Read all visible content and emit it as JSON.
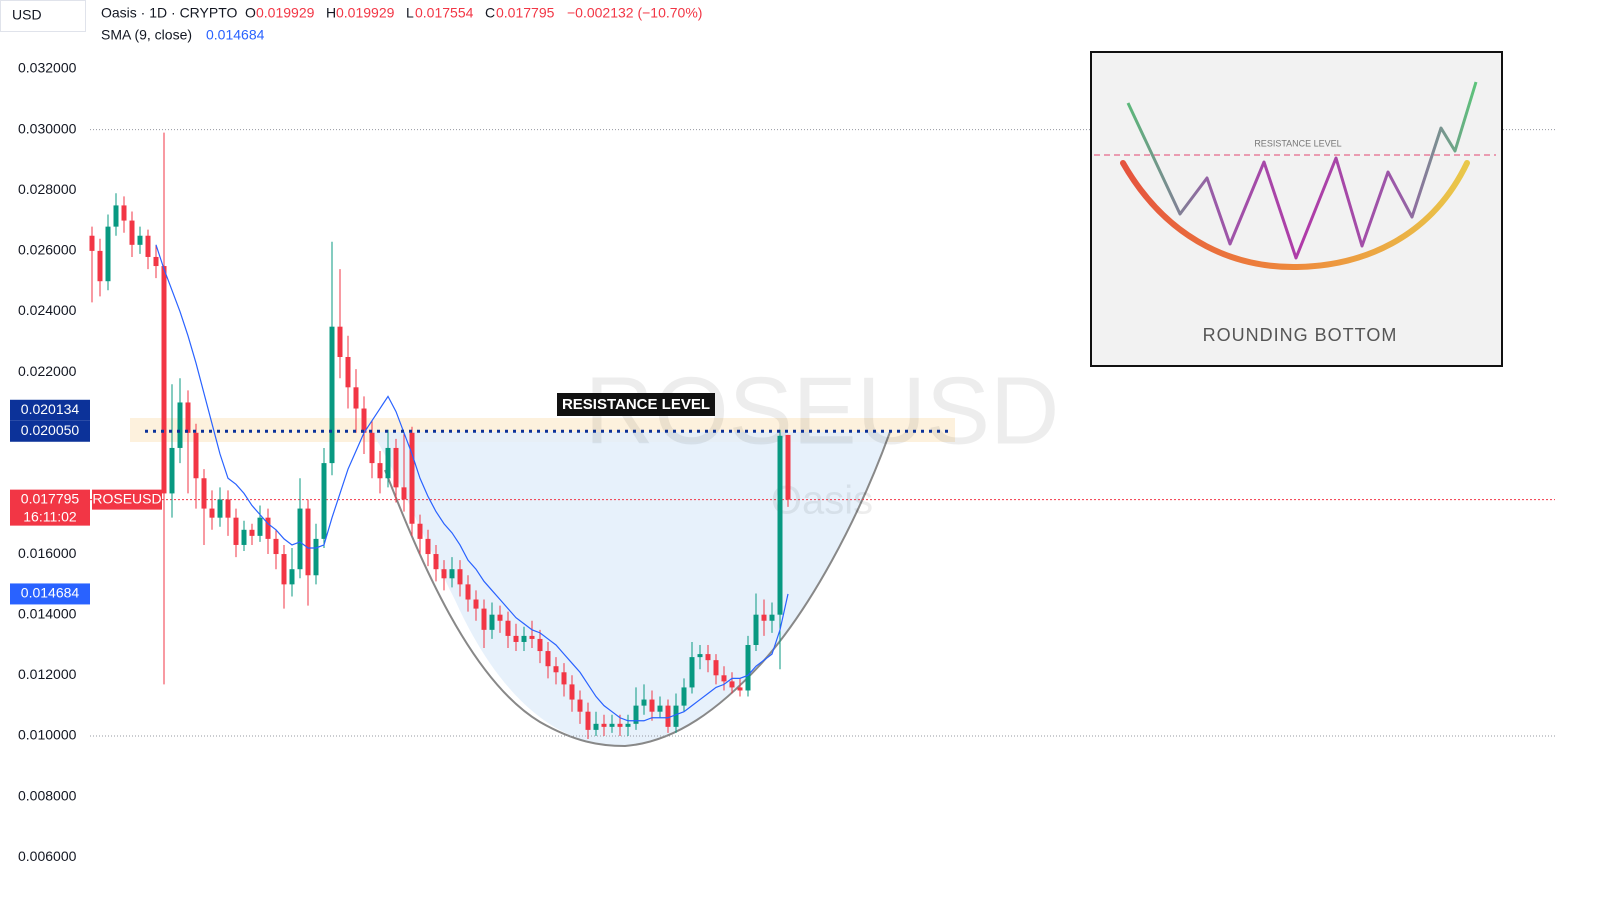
{
  "header": {
    "currency": "USD",
    "symbol": "Oasis · 1D · CRYPTO",
    "open_label": "O",
    "open": "0.019929",
    "high_label": "H",
    "high": "0.019929",
    "low_label": "L",
    "low": "0.017554",
    "close_label": "C",
    "close": "0.017795",
    "change": "−0.002132 (−10.70%)",
    "indicator": "SMA (9, close)",
    "indicator_value": "0.014684"
  },
  "chart_data": {
    "type": "candlestick",
    "watermark": "ROSEUSD",
    "watermark_sub": "Oasis",
    "annotation": "RESISTANCE LEVEL",
    "ylim": [
      0.005248,
      0.034276
    ],
    "yticks": [
      {
        "value": 0.032,
        "label": "0.032000"
      },
      {
        "value": 0.03,
        "label": "0.030000"
      },
      {
        "value": 0.028,
        "label": "0.028000"
      },
      {
        "value": 0.026,
        "label": "0.026000"
      },
      {
        "value": 0.024,
        "label": "0.024000"
      },
      {
        "value": 0.022,
        "label": "0.022000"
      },
      {
        "value": 0.016,
        "label": "0.016000"
      },
      {
        "value": 0.014,
        "label": "0.014000"
      },
      {
        "value": 0.012,
        "label": "0.012000"
      },
      {
        "value": 0.01,
        "label": "0.010000"
      },
      {
        "value": 0.008,
        "label": "0.008000"
      },
      {
        "value": 0.006,
        "label": "0.006000"
      }
    ],
    "grid": false,
    "up_color": "#089981",
    "down_color": "#f23645",
    "open": [
      0.0265,
      0.026,
      0.025,
      0.0268,
      0.0275,
      0.027,
      0.0262,
      0.0265,
      0.0258,
      0.0255,
      0.018,
      0.0195,
      0.021,
      0.02,
      0.0185,
      0.0175,
      0.0172,
      0.0178,
      0.0172,
      0.0163,
      0.0168,
      0.0166,
      0.0172,
      0.0165,
      0.016,
      0.015,
      0.0155,
      0.0175,
      0.0153,
      0.0165,
      0.019,
      0.0235,
      0.0225,
      0.0215,
      0.0208,
      0.02,
      0.019,
      0.0185,
      0.0195,
      0.0182,
      0.02,
      0.017,
      0.0165,
      0.016,
      0.0155,
      0.0152,
      0.0155,
      0.015,
      0.0145,
      0.0142,
      0.0135,
      0.014,
      0.0138,
      0.0133,
      0.0131,
      0.0133,
      0.0132,
      0.0128,
      0.0123,
      0.0121,
      0.0117,
      0.0112,
      0.0108,
      0.0102,
      0.0104,
      0.0103,
      0.0104,
      0.0103,
      0.0104,
      0.011,
      0.0112,
      0.0108,
      0.011,
      0.0103,
      0.011,
      0.0116,
      0.0126,
      0.0127,
      0.0125,
      0.012,
      0.0118,
      0.0116,
      0.0115,
      0.013,
      0.014,
      0.0138,
      0.014,
      0.019929
    ],
    "high": [
      0.0268,
      0.0264,
      0.0272,
      0.0279,
      0.0278,
      0.0273,
      0.0268,
      0.0267,
      0.0262,
      0.0299,
      0.0216,
      0.0218,
      0.0214,
      0.0203,
      0.0188,
      0.0181,
      0.0182,
      0.0181,
      0.0175,
      0.0171,
      0.017,
      0.0176,
      0.0175,
      0.0168,
      0.0163,
      0.0162,
      0.0185,
      0.0178,
      0.017,
      0.0195,
      0.0263,
      0.0254,
      0.0232,
      0.0221,
      0.0212,
      0.0204,
      0.0194,
      0.0201,
      0.0198,
      0.02,
      0.0202,
      0.0173,
      0.0168,
      0.0163,
      0.0158,
      0.0159,
      0.0158,
      0.0153,
      0.0148,
      0.0145,
      0.0144,
      0.0143,
      0.0141,
      0.0137,
      0.0136,
      0.0138,
      0.0135,
      0.0131,
      0.0126,
      0.0124,
      0.012,
      0.0115,
      0.0111,
      0.0108,
      0.0107,
      0.0107,
      0.0107,
      0.0107,
      0.0116,
      0.0117,
      0.0115,
      0.0113,
      0.0112,
      0.0114,
      0.0119,
      0.0131,
      0.013,
      0.013,
      0.0127,
      0.0123,
      0.0121,
      0.0119,
      0.0133,
      0.0147,
      0.0145,
      0.0144,
      0.0201,
      0.019929
    ],
    "low": [
      0.0243,
      0.0245,
      0.0247,
      0.0265,
      0.0266,
      0.0258,
      0.0259,
      0.0254,
      0.0251,
      0.0117,
      0.0172,
      0.019,
      0.018,
      0.0175,
      0.0163,
      0.0168,
      0.0169,
      0.0166,
      0.0159,
      0.0161,
      0.0163,
      0.0164,
      0.016,
      0.0155,
      0.0142,
      0.0146,
      0.0152,
      0.0143,
      0.015,
      0.0162,
      0.0186,
      0.0218,
      0.0208,
      0.02,
      0.0193,
      0.0185,
      0.018,
      0.0182,
      0.0177,
      0.0174,
      0.0166,
      0.016,
      0.0156,
      0.0151,
      0.0148,
      0.0149,
      0.0146,
      0.0141,
      0.0138,
      0.0129,
      0.0132,
      0.0134,
      0.0129,
      0.0128,
      0.0128,
      0.0129,
      0.0124,
      0.0119,
      0.0117,
      0.0113,
      0.0108,
      0.0104,
      0.0099,
      0.01,
      0.01,
      0.0101,
      0.01,
      0.01,
      0.0102,
      0.0107,
      0.0105,
      0.0106,
      0.0101,
      0.0101,
      0.0108,
      0.0114,
      0.0122,
      0.0121,
      0.0117,
      0.0115,
      0.0114,
      0.0113,
      0.0113,
      0.0128,
      0.0133,
      0.0134,
      0.0122,
      0.017554
    ],
    "close": [
      0.026,
      0.025,
      0.0268,
      0.0275,
      0.027,
      0.0262,
      0.0265,
      0.0258,
      0.0255,
      0.018,
      0.0195,
      0.021,
      0.02,
      0.0185,
      0.0175,
      0.0172,
      0.0178,
      0.0172,
      0.0163,
      0.0168,
      0.0166,
      0.0172,
      0.0165,
      0.016,
      0.015,
      0.0155,
      0.0175,
      0.0153,
      0.0165,
      0.019,
      0.0235,
      0.0225,
      0.0215,
      0.0208,
      0.02,
      0.019,
      0.0185,
      0.0195,
      0.0182,
      0.0178,
      0.017,
      0.0165,
      0.016,
      0.0155,
      0.0152,
      0.0155,
      0.015,
      0.0145,
      0.0142,
      0.0135,
      0.014,
      0.0138,
      0.0133,
      0.0131,
      0.0133,
      0.0132,
      0.0128,
      0.0123,
      0.0121,
      0.0117,
      0.0112,
      0.0108,
      0.0102,
      0.0104,
      0.0103,
      0.0104,
      0.0103,
      0.0104,
      0.011,
      0.0112,
      0.0108,
      0.011,
      0.0103,
      0.011,
      0.0116,
      0.0126,
      0.0127,
      0.0125,
      0.012,
      0.0118,
      0.0116,
      0.0115,
      0.013,
      0.014,
      0.0138,
      0.014,
      0.0199,
      0.017795
    ],
    "sma": {
      "color": "#2962ff",
      "values": [
        null,
        null,
        null,
        null,
        null,
        null,
        null,
        null,
        0.0262,
        0.0254,
        0.0247,
        0.024,
        0.0232,
        0.0223,
        0.0213,
        0.0203,
        0.0193,
        0.0185,
        0.0183,
        0.018,
        0.0176,
        0.0173,
        0.017,
        0.0168,
        0.0165,
        0.0163,
        0.0164,
        0.0162,
        0.0162,
        0.0163,
        0.0172,
        0.018,
        0.0188,
        0.0194,
        0.02,
        0.0204,
        0.0208,
        0.0212,
        0.0207,
        0.02,
        0.0193,
        0.0185,
        0.0179,
        0.0174,
        0.017,
        0.0167,
        0.0163,
        0.0158,
        0.0155,
        0.0151,
        0.0148,
        0.0145,
        0.0142,
        0.0139,
        0.0137,
        0.0135,
        0.0134,
        0.0132,
        0.013,
        0.0127,
        0.0124,
        0.0121,
        0.0117,
        0.0113,
        0.011,
        0.0108,
        0.0106,
        0.0105,
        0.0105,
        0.0105,
        0.0106,
        0.0106,
        0.0106,
        0.0107,
        0.0108,
        0.011,
        0.0112,
        0.0114,
        0.0116,
        0.0117,
        0.0119,
        0.0119,
        0.012,
        0.0123,
        0.0125,
        0.0127,
        0.0135,
        0.014684
      ]
    },
    "levels": [
      0.03,
      0.01
    ],
    "price_labels": [
      {
        "value": 0.020134,
        "label": "0.020134",
        "color": "#0c3299"
      },
      {
        "value": 0.02005,
        "label": "0.020050",
        "color": "#0c3299"
      },
      {
        "value": 0.017795,
        "label": "0.017795",
        "time": "16:11:02",
        "tag": "ROSEUSD",
        "color": "#f23645"
      },
      {
        "value": 0.014684,
        "label": "0.014684",
        "color": "#2962ff"
      }
    ]
  },
  "inset": {
    "resistance": "RESISTANCE LEVEL",
    "title": "ROUNDING BOTTOM"
  }
}
